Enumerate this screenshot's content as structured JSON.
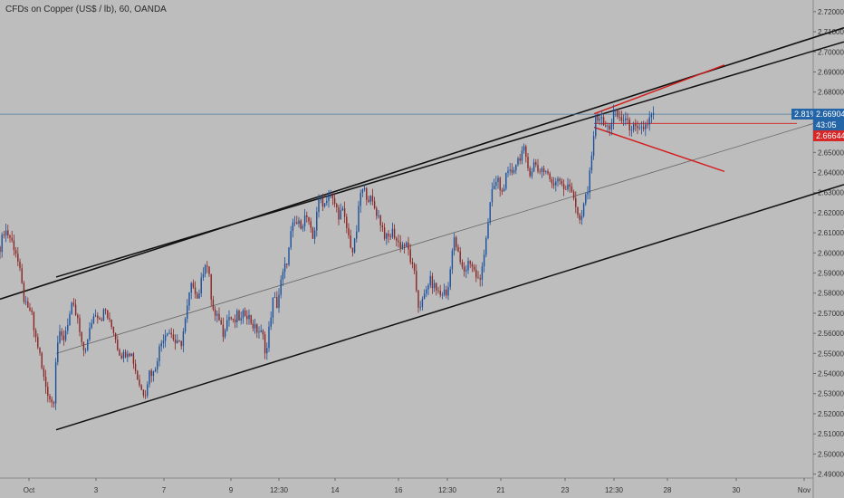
{
  "chart_data": {
    "type": "candlestick",
    "title": "CFDs on Copper (US$ / lb), 60, OANDA",
    "y_range": [
      2.488,
      2.724
    ],
    "x_range": [
      0,
      932
    ],
    "y_ticks": [
      "2.72000",
      "2.71000",
      "2.70000",
      "2.69000",
      "2.68000",
      "2.67000",
      "2.66000",
      "2.65000",
      "2.64000",
      "2.63000",
      "2.62000",
      "2.61000",
      "2.60000",
      "2.59000",
      "2.58000",
      "2.57000",
      "2.56000",
      "2.55000",
      "2.54000",
      "2.53000",
      "2.52000",
      "2.51000",
      "2.50000",
      "2.49000"
    ],
    "x_ticks": [
      {
        "label": "Oct",
        "x": 32
      },
      {
        "label": "3",
        "x": 106
      },
      {
        "label": "7",
        "x": 181
      },
      {
        "label": "9",
        "x": 255
      },
      {
        "label": "12:30",
        "x": 308
      },
      {
        "label": "14",
        "x": 370
      },
      {
        "label": "16",
        "x": 440
      },
      {
        "label": "12:30",
        "x": 494
      },
      {
        "label": "21",
        "x": 553
      },
      {
        "label": "23",
        "x": 624
      },
      {
        "label": "12:30",
        "x": 678
      },
      {
        "label": "28",
        "x": 737
      },
      {
        "label": "30",
        "x": 813
      },
      {
        "label": "Nov",
        "x": 888
      }
    ],
    "price_path": [
      [
        0,
        2.603
      ],
      [
        5,
        2.612
      ],
      [
        12,
        2.607
      ],
      [
        18,
        2.6
      ],
      [
        22,
        2.59
      ],
      [
        26,
        2.578
      ],
      [
        30,
        2.571
      ],
      [
        34,
        2.572
      ],
      [
        38,
        2.56
      ],
      [
        43,
        2.552
      ],
      [
        47,
        2.54
      ],
      [
        51,
        2.533
      ],
      [
        55,
        2.528
      ],
      [
        59,
        2.524
      ],
      [
        62,
        2.551
      ],
      [
        65,
        2.559
      ],
      [
        70,
        2.557
      ],
      [
        75,
        2.566
      ],
      [
        80,
        2.574
      ],
      [
        86,
        2.566
      ],
      [
        91,
        2.551
      ],
      [
        96,
        2.554
      ],
      [
        101,
        2.566
      ],
      [
        106,
        2.571
      ],
      [
        111,
        2.567
      ],
      [
        116,
        2.572
      ],
      [
        121,
        2.565
      ],
      [
        126,
        2.561
      ],
      [
        131,
        2.551
      ],
      [
        136,
        2.549
      ],
      [
        141,
        2.552
      ],
      [
        146,
        2.549
      ],
      [
        151,
        2.539
      ],
      [
        156,
        2.532
      ],
      [
        160,
        2.53
      ],
      [
        165,
        2.541
      ],
      [
        170,
        2.54
      ],
      [
        175,
        2.551
      ],
      [
        180,
        2.558
      ],
      [
        185,
        2.562
      ],
      [
        190,
        2.559
      ],
      [
        195,
        2.554
      ],
      [
        200,
        2.555
      ],
      [
        205,
        2.567
      ],
      [
        210,
        2.582
      ],
      [
        214,
        2.585
      ],
      [
        218,
        2.577
      ],
      [
        222,
        2.585
      ],
      [
        226,
        2.596
      ],
      [
        230,
        2.592
      ],
      [
        234,
        2.574
      ],
      [
        238,
        2.567
      ],
      [
        242,
        2.568
      ],
      [
        246,
        2.56
      ],
      [
        250,
        2.566
      ],
      [
        254,
        2.569
      ],
      [
        258,
        2.564
      ],
      [
        262,
        2.569
      ],
      [
        266,
        2.566
      ],
      [
        270,
        2.571
      ],
      [
        274,
        2.569
      ],
      [
        278,
        2.565
      ],
      [
        282,
        2.562
      ],
      [
        286,
        2.561
      ],
      [
        290,
        2.559
      ],
      [
        294,
        2.549
      ],
      [
        298,
        2.566
      ],
      [
        302,
        2.578
      ],
      [
        306,
        2.574
      ],
      [
        310,
        2.585
      ],
      [
        314,
        2.592
      ],
      [
        318,
        2.598
      ],
      [
        322,
        2.612
      ],
      [
        326,
        2.615
      ],
      [
        330,
        2.614
      ],
      [
        334,
        2.615
      ],
      [
        338,
        2.619
      ],
      [
        342,
        2.612
      ],
      [
        346,
        2.606
      ],
      [
        350,
        2.622
      ],
      [
        354,
        2.627
      ],
      [
        358,
        2.624
      ],
      [
        362,
        2.629
      ],
      [
        366,
        2.627
      ],
      [
        370,
        2.624
      ],
      [
        374,
        2.619
      ],
      [
        378,
        2.621
      ],
      [
        382,
        2.614
      ],
      [
        386,
        2.606
      ],
      [
        390,
        2.6
      ],
      [
        394,
        2.612
      ],
      [
        398,
        2.63
      ],
      [
        402,
        2.631
      ],
      [
        406,
        2.628
      ],
      [
        410,
        2.626
      ],
      [
        414,
        2.622
      ],
      [
        418,
        2.618
      ],
      [
        422,
        2.613
      ],
      [
        426,
        2.607
      ],
      [
        430,
        2.608
      ],
      [
        434,
        2.611
      ],
      [
        438,
        2.606
      ],
      [
        442,
        2.604
      ],
      [
        446,
        2.604
      ],
      [
        450,
        2.603
      ],
      [
        454,
        2.595
      ],
      [
        458,
        2.588
      ],
      [
        462,
        2.574
      ],
      [
        466,
        2.575
      ],
      [
        470,
        2.58
      ],
      [
        474,
        2.587
      ],
      [
        478,
        2.584
      ],
      [
        482,
        2.582
      ],
      [
        486,
        2.579
      ],
      [
        490,
        2.581
      ],
      [
        494,
        2.578
      ],
      [
        498,
        2.598
      ],
      [
        502,
        2.607
      ],
      [
        506,
        2.599
      ],
      [
        510,
        2.592
      ],
      [
        514,
        2.591
      ],
      [
        518,
        2.597
      ],
      [
        522,
        2.593
      ],
      [
        526,
        2.588
      ],
      [
        530,
        2.585
      ],
      [
        534,
        2.599
      ],
      [
        538,
        2.612
      ],
      [
        542,
        2.627
      ],
      [
        546,
        2.634
      ],
      [
        550,
        2.636
      ],
      [
        554,
        2.629
      ],
      [
        558,
        2.637
      ],
      [
        562,
        2.639
      ],
      [
        566,
        2.641
      ],
      [
        570,
        2.645
      ],
      [
        574,
        2.648
      ],
      [
        578,
        2.652
      ],
      [
        582,
        2.643
      ],
      [
        586,
        2.64
      ],
      [
        590,
        2.645
      ],
      [
        594,
        2.641
      ],
      [
        598,
        2.642
      ],
      [
        602,
        2.641
      ],
      [
        606,
        2.639
      ],
      [
        610,
        2.632
      ],
      [
        614,
        2.637
      ],
      [
        618,
        2.638
      ],
      [
        622,
        2.633
      ],
      [
        626,
        2.632
      ],
      [
        630,
        2.633
      ],
      [
        634,
        2.628
      ],
      [
        638,
        2.618
      ],
      [
        642,
        2.615
      ],
      [
        646,
        2.628
      ],
      [
        650,
        2.632
      ],
      [
        654,
        2.654
      ],
      [
        658,
        2.667
      ],
      [
        662,
        2.668
      ],
      [
        666,
        2.664
      ],
      [
        670,
        2.662
      ],
      [
        674,
        2.663
      ],
      [
        678,
        2.67
      ],
      [
        682,
        2.668
      ],
      [
        686,
        2.666
      ],
      [
        690,
        2.667
      ],
      [
        694,
        2.663
      ],
      [
        698,
        2.663
      ],
      [
        702,
        2.661
      ],
      [
        706,
        2.66
      ],
      [
        710,
        2.662
      ],
      [
        714,
        2.664
      ],
      [
        718,
        2.667
      ],
      [
        722,
        2.669
      ]
    ],
    "lines": [
      {
        "color": "#111111",
        "width": 1.6,
        "x1": 0,
        "y1": 2.577,
        "x2": 932,
        "y2": 2.712
      },
      {
        "color": "#111111",
        "width": 1.5,
        "x1": 62,
        "y1": 2.588,
        "x2": 932,
        "y2": 2.705
      },
      {
        "color": "#111111",
        "width": 1.5,
        "x1": 62,
        "y1": 2.512,
        "x2": 932,
        "y2": 2.634
      },
      {
        "color": "#666666",
        "width": 0.8,
        "x1": 62,
        "y1": 2.55,
        "x2": 932,
        "y2": 2.669
      },
      {
        "color": "#d41a1a",
        "width": 1.4,
        "x1": 656,
        "y1": 2.6692,
        "x2": 800,
        "y2": 2.6935
      },
      {
        "color": "#d41a1a",
        "width": 1.4,
        "x1": 656,
        "y1": 2.6625,
        "x2": 800,
        "y2": 2.6405
      },
      {
        "color": "#d41a1a",
        "width": 0.9,
        "x1": 656,
        "y1": 2.6644,
        "x2": 880,
        "y2": 2.6644
      },
      {
        "color": "#4a7ba3",
        "width": 0.8,
        "x1": 0,
        "y1": 2.669,
        "x2": 880,
        "y2": 2.669
      }
    ],
    "current_price": "2.66904",
    "current_change": "2.81%",
    "countdown": "43:05",
    "red_level": "2.66644",
    "colors": {
      "background": "#bdbdbd",
      "up": "#1a4f9c",
      "down": "#8b2525",
      "accent_blue": "#2465a8",
      "accent_red": "#d62828"
    },
    "grid": false
  }
}
